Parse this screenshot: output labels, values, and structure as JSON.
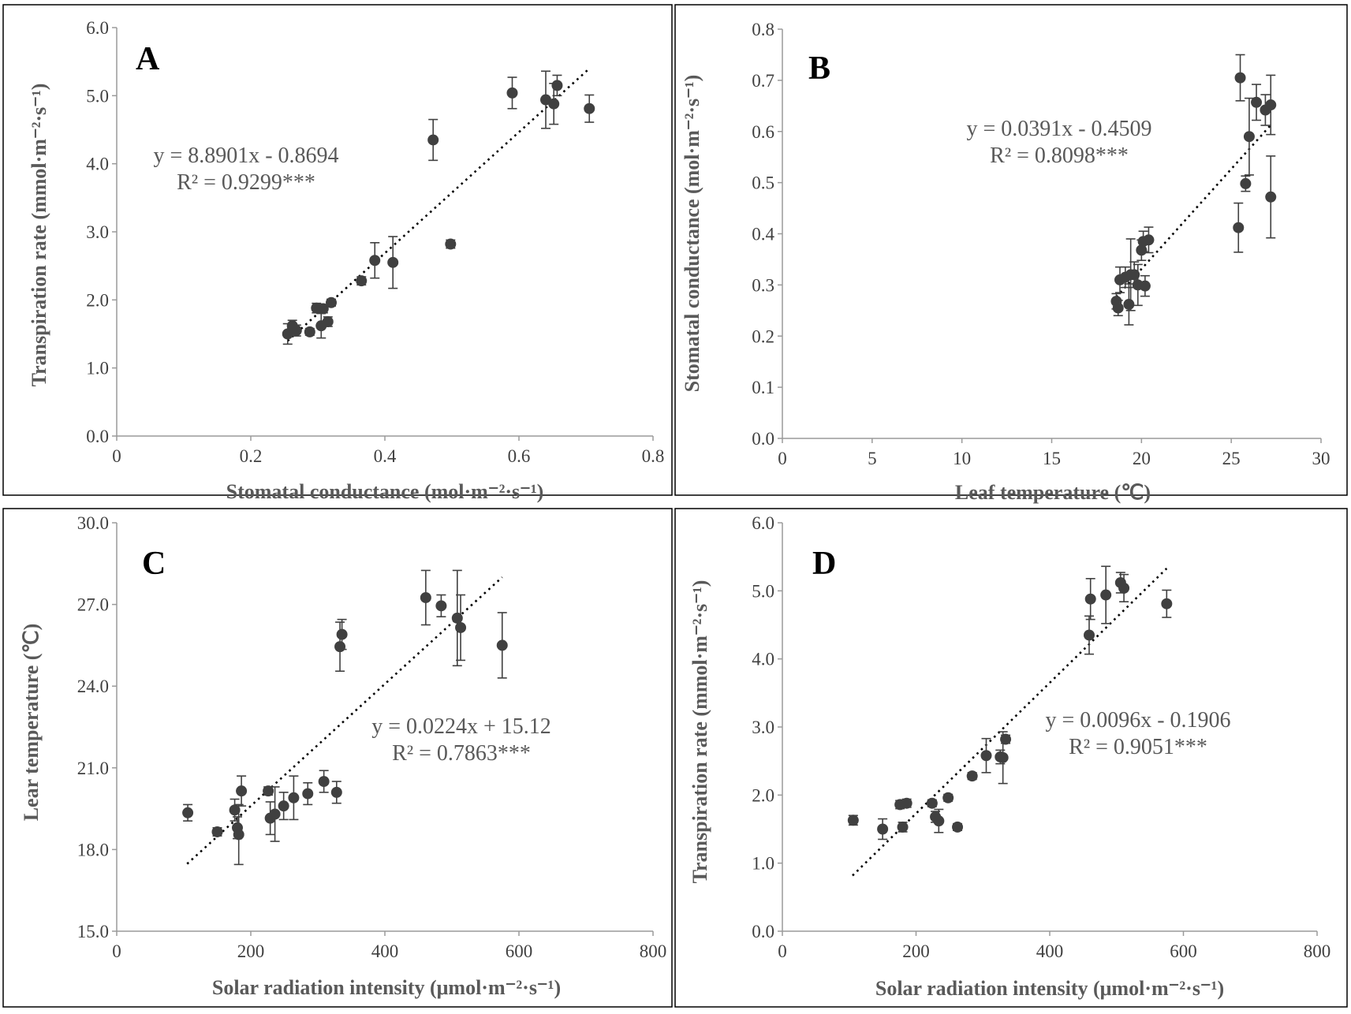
{
  "figure": {
    "marker_color": "#404040",
    "trend_color": "#000000",
    "text_color": "#595959"
  },
  "chart_data": [
    {
      "type": "scatter",
      "panel": "A",
      "xlabel": "Stomatal conductance (mol·m⁻²·s⁻¹)",
      "ylabel": "Transpiration rate (mmol·m⁻²·s⁻¹)",
      "xlim": [
        0,
        0.8
      ],
      "ylim": [
        0,
        6
      ],
      "x_ticks": [
        "0",
        "0.2",
        "0.4",
        "0.6",
        "0.8"
      ],
      "y_ticks": [
        "0.0",
        "1.0",
        "2.0",
        "3.0",
        "4.0",
        "5.0",
        "6.0"
      ],
      "equation": "y = 8.8901x - 0.8694",
      "r2": "R² = 0.9299***",
      "trendline": {
        "slope": 8.8901,
        "intercept": -0.8694,
        "x_range": [
          0.255,
          0.705
        ]
      },
      "points": [
        {
          "x": 0.255,
          "y": 1.5,
          "err": 0.15
        },
        {
          "x": 0.262,
          "y": 1.62,
          "err": 0.08
        },
        {
          "x": 0.268,
          "y": 1.55,
          "err": 0.08
        },
        {
          "x": 0.288,
          "y": 1.53,
          "err": 0.05
        },
        {
          "x": 0.298,
          "y": 1.88,
          "err": 0.07
        },
        {
          "x": 0.305,
          "y": 1.62,
          "err": 0.18
        },
        {
          "x": 0.308,
          "y": 1.87,
          "err": 0.06
        },
        {
          "x": 0.315,
          "y": 1.68,
          "err": 0.07
        },
        {
          "x": 0.32,
          "y": 1.96,
          "err": 0.05
        },
        {
          "x": 0.365,
          "y": 2.28,
          "err": 0.06
        },
        {
          "x": 0.385,
          "y": 2.58,
          "err": 0.26
        },
        {
          "x": 0.412,
          "y": 2.55,
          "err": 0.38
        },
        {
          "x": 0.472,
          "y": 4.35,
          "err": 0.3
        },
        {
          "x": 0.498,
          "y": 2.82,
          "err": 0.06
        },
        {
          "x": 0.59,
          "y": 5.04,
          "err": 0.23
        },
        {
          "x": 0.64,
          "y": 4.94,
          "err": 0.42
        },
        {
          "x": 0.652,
          "y": 4.88,
          "err": 0.3
        },
        {
          "x": 0.657,
          "y": 5.15,
          "err": 0.15
        },
        {
          "x": 0.705,
          "y": 4.81,
          "err": 0.2
        }
      ]
    },
    {
      "type": "scatter",
      "panel": "B",
      "xlabel": "Leaf temperature (℃)",
      "ylabel": "Stomatal conductance (mol·m⁻²·s⁻¹)",
      "xlim": [
        0,
        30
      ],
      "ylim": [
        0,
        0.8
      ],
      "x_ticks": [
        "0",
        "5",
        "10",
        "15",
        "20",
        "25",
        "30"
      ],
      "y_ticks": [
        "0.0",
        "0.1",
        "0.2",
        "0.3",
        "0.4",
        "0.5",
        "0.6",
        "0.7",
        "0.8"
      ],
      "equation": "y = 0.0391x - 0.4509",
      "r2": "R² = 0.8098***",
      "trendline": {
        "slope": 0.0391,
        "intercept": -0.4509,
        "x_range": [
          18.6,
          27.2
        ]
      },
      "points": [
        {
          "x": 18.6,
          "y": 0.268,
          "err": 0.015
        },
        {
          "x": 18.7,
          "y": 0.255,
          "err": 0.015
        },
        {
          "x": 18.8,
          "y": 0.31,
          "err": 0.025
        },
        {
          "x": 19.1,
          "y": 0.315,
          "err": 0.02
        },
        {
          "x": 19.3,
          "y": 0.262,
          "err": 0.04
        },
        {
          "x": 19.4,
          "y": 0.32,
          "err": 0.07
        },
        {
          "x": 19.6,
          "y": 0.32,
          "err": 0.025
        },
        {
          "x": 19.8,
          "y": 0.3,
          "err": 0.04
        },
        {
          "x": 20.0,
          "y": 0.368,
          "err": 0.02
        },
        {
          "x": 20.1,
          "y": 0.385,
          "err": 0.02
        },
        {
          "x": 20.2,
          "y": 0.298,
          "err": 0.02
        },
        {
          "x": 20.4,
          "y": 0.388,
          "err": 0.025
        },
        {
          "x": 25.4,
          "y": 0.412,
          "err": 0.048
        },
        {
          "x": 25.5,
          "y": 0.705,
          "err": 0.045
        },
        {
          "x": 25.8,
          "y": 0.498,
          "err": 0.015
        },
        {
          "x": 26.0,
          "y": 0.59,
          "err": 0.075
        },
        {
          "x": 26.4,
          "y": 0.657,
          "err": 0.035
        },
        {
          "x": 26.9,
          "y": 0.642,
          "err": 0.03
        },
        {
          "x": 27.2,
          "y": 0.652,
          "err": 0.058
        },
        {
          "x": 27.2,
          "y": 0.472,
          "err": 0.08
        }
      ]
    },
    {
      "type": "scatter",
      "panel": "C",
      "xlabel": "Solar radiation intensity (μmol·m⁻²·s⁻¹)",
      "ylabel": "Lear temperature (℃)",
      "xlim": [
        0,
        800
      ],
      "ylim": [
        15,
        30
      ],
      "x_ticks": [
        "0",
        "200",
        "400",
        "600",
        "800"
      ],
      "y_ticks": [
        "15.0",
        "18.0",
        "21.0",
        "24.0",
        "27.0",
        "30.0"
      ],
      "equation": "y = 0.0224x + 15.12",
      "r2": "R² = 0.7863***",
      "trendline": {
        "slope": 0.0224,
        "intercept": 15.12,
        "x_range": [
          105,
          575
        ]
      },
      "points": [
        {
          "x": 106,
          "y": 19.35,
          "err": 0.3
        },
        {
          "x": 150,
          "y": 18.65,
          "err": 0.15
        },
        {
          "x": 176,
          "y": 19.45,
          "err": 0.4
        },
        {
          "x": 180,
          "y": 18.8,
          "err": 0.4
        },
        {
          "x": 182,
          "y": 18.55,
          "err": 1.1
        },
        {
          "x": 186,
          "y": 20.15,
          "err": 0.55
        },
        {
          "x": 226,
          "y": 20.15,
          "err": 0.15
        },
        {
          "x": 229,
          "y": 19.15,
          "err": 0.6
        },
        {
          "x": 236,
          "y": 19.3,
          "err": 1.0
        },
        {
          "x": 249,
          "y": 19.6,
          "err": 0.5
        },
        {
          "x": 264,
          "y": 19.9,
          "err": 0.8
        },
        {
          "x": 285,
          "y": 20.05,
          "err": 0.4
        },
        {
          "x": 309,
          "y": 20.5,
          "err": 0.4
        },
        {
          "x": 328,
          "y": 20.1,
          "err": 0.4
        },
        {
          "x": 333,
          "y": 25.45,
          "err": 0.9
        },
        {
          "x": 336,
          "y": 25.9,
          "err": 0.55
        },
        {
          "x": 461,
          "y": 27.25,
          "err": 1.0
        },
        {
          "x": 484,
          "y": 26.95,
          "err": 0.4
        },
        {
          "x": 508,
          "y": 26.5,
          "err": 1.75
        },
        {
          "x": 513,
          "y": 26.15,
          "err": 1.2
        },
        {
          "x": 575,
          "y": 25.5,
          "err": 1.2
        }
      ]
    },
    {
      "type": "scatter",
      "panel": "D",
      "xlabel": "Solar radiation intensity (μmol·m⁻²·s⁻¹)",
      "ylabel": "Transpiration rate (mmol·m⁻²·s⁻¹)",
      "xlim": [
        0,
        800
      ],
      "ylim": [
        0,
        6
      ],
      "x_ticks": [
        "0",
        "200",
        "400",
        "600",
        "800"
      ],
      "y_ticks": [
        "0.0",
        "1.0",
        "2.0",
        "3.0",
        "4.0",
        "5.0",
        "6.0"
      ],
      "equation": "y = 0.0096x - 0.1906",
      "r2": "R² = 0.9051***",
      "trendline": {
        "slope": 0.0096,
        "intercept": -0.1906,
        "x_range": [
          105,
          575
        ]
      },
      "points": [
        {
          "x": 106,
          "y": 1.63,
          "err": 0.07
        },
        {
          "x": 150,
          "y": 1.5,
          "err": 0.15
        },
        {
          "x": 176,
          "y": 1.86,
          "err": 0.06
        },
        {
          "x": 180,
          "y": 1.53,
          "err": 0.07
        },
        {
          "x": 186,
          "y": 1.88,
          "err": 0.06
        },
        {
          "x": 224,
          "y": 1.88,
          "err": 0.05
        },
        {
          "x": 229,
          "y": 1.68,
          "err": 0.08
        },
        {
          "x": 234,
          "y": 1.62,
          "err": 0.17
        },
        {
          "x": 248,
          "y": 1.96,
          "err": 0.05
        },
        {
          "x": 262,
          "y": 1.53,
          "err": 0.05
        },
        {
          "x": 284,
          "y": 2.28,
          "err": 0.05
        },
        {
          "x": 305,
          "y": 2.58,
          "err": 0.25
        },
        {
          "x": 326,
          "y": 2.56,
          "err": 0.1
        },
        {
          "x": 330,
          "y": 2.55,
          "err": 0.38
        },
        {
          "x": 334,
          "y": 2.82,
          "err": 0.06
        },
        {
          "x": 459,
          "y": 4.35,
          "err": 0.28
        },
        {
          "x": 461,
          "y": 4.88,
          "err": 0.3
        },
        {
          "x": 484,
          "y": 4.94,
          "err": 0.42
        },
        {
          "x": 506,
          "y": 5.12,
          "err": 0.15
        },
        {
          "x": 511,
          "y": 5.04,
          "err": 0.2
        },
        {
          "x": 575,
          "y": 4.81,
          "err": 0.2
        }
      ]
    }
  ]
}
